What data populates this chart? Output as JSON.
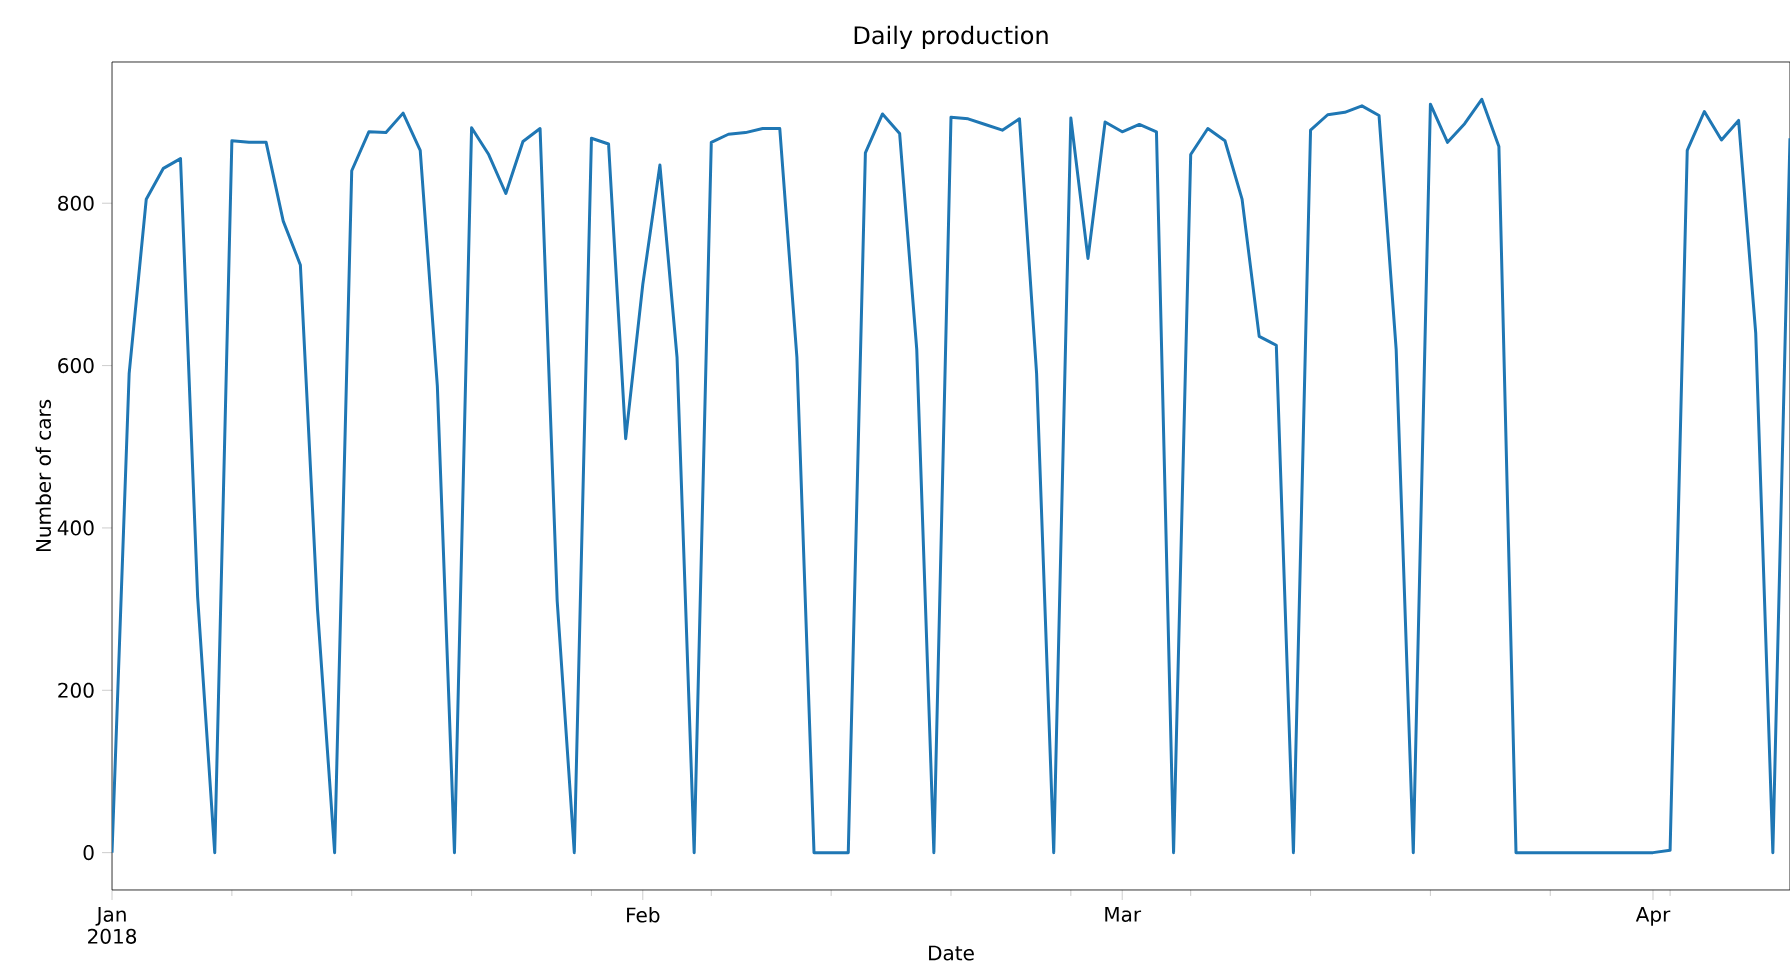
{
  "chart_data": {
    "type": "line",
    "title": "Daily production",
    "xlabel": "Date",
    "ylabel": "Number of cars",
    "x": [
      "2018-01-01",
      "2018-01-02",
      "2018-01-03",
      "2018-01-04",
      "2018-01-05",
      "2018-01-06",
      "2018-01-07",
      "2018-01-08",
      "2018-01-09",
      "2018-01-10",
      "2018-01-11",
      "2018-01-12",
      "2018-01-13",
      "2018-01-14",
      "2018-01-15",
      "2018-01-16",
      "2018-01-17",
      "2018-01-18",
      "2018-01-19",
      "2018-01-20",
      "2018-01-21",
      "2018-01-22",
      "2018-01-23",
      "2018-01-24",
      "2018-01-25",
      "2018-01-26",
      "2018-01-27",
      "2018-01-28",
      "2018-01-29",
      "2018-01-30",
      "2018-01-31",
      "2018-02-01",
      "2018-02-02",
      "2018-02-03",
      "2018-02-04",
      "2018-02-05",
      "2018-02-06",
      "2018-02-07",
      "2018-02-08",
      "2018-02-09",
      "2018-02-10",
      "2018-02-11",
      "2018-02-12",
      "2018-02-13",
      "2018-02-14",
      "2018-02-15",
      "2018-02-16",
      "2018-02-17",
      "2018-02-18",
      "2018-02-19",
      "2018-02-20",
      "2018-02-21",
      "2018-02-22",
      "2018-02-23",
      "2018-02-24",
      "2018-02-25",
      "2018-02-26",
      "2018-02-27",
      "2018-02-28",
      "2018-03-01",
      "2018-03-02",
      "2018-03-03",
      "2018-03-04",
      "2018-03-05",
      "2018-03-06",
      "2018-03-07",
      "2018-03-08",
      "2018-03-09",
      "2018-03-10",
      "2018-03-11",
      "2018-03-12",
      "2018-03-13",
      "2018-03-14",
      "2018-03-15",
      "2018-03-16",
      "2018-03-17",
      "2018-03-18",
      "2018-03-19",
      "2018-03-20",
      "2018-03-21",
      "2018-03-22",
      "2018-03-23",
      "2018-03-24",
      "2018-03-25",
      "2018-03-26",
      "2018-03-27",
      "2018-03-28",
      "2018-03-29",
      "2018-03-30",
      "2018-03-31",
      "2018-04-01",
      "2018-04-02",
      "2018-04-03",
      "2018-04-04",
      "2018-04-05",
      "2018-04-06",
      "2018-04-07",
      "2018-04-08",
      "2018-04-09"
    ],
    "series": [
      {
        "color": "#1f77b4",
        "values": [
          0,
          590,
          805,
          843,
          855,
          315,
          0,
          877,
          875,
          875,
          778,
          724,
          300,
          0,
          840,
          888,
          887,
          911,
          865,
          575,
          0,
          893,
          860,
          812,
          876,
          892,
          310,
          0,
          880,
          873,
          510,
          700,
          847,
          610,
          0,
          875,
          885,
          887,
          892,
          892,
          610,
          0,
          0,
          0,
          862,
          910,
          886,
          620,
          0,
          906,
          904,
          897,
          890,
          904,
          590,
          0,
          905,
          732,
          900,
          888,
          897,
          888,
          0,
          860,
          892,
          877,
          805,
          636,
          625,
          0,
          890,
          909,
          912,
          920,
          908,
          620,
          0,
          922,
          875,
          898,
          928,
          870,
          0,
          0,
          0,
          0,
          0,
          0,
          0,
          0,
          0,
          3,
          865,
          913,
          878,
          902,
          640,
          0,
          880
        ]
      }
    ],
    "xlim": [
      "2018-01-01",
      "2018-04-09"
    ],
    "xticks": [
      {
        "value": "2018-01-01",
        "label": "Jan\n2018"
      },
      {
        "value": "2018-01-08",
        "label": null
      },
      {
        "value": "2018-01-15",
        "label": null
      },
      {
        "value": "2018-01-22",
        "label": null
      },
      {
        "value": "2018-01-29",
        "label": null
      },
      {
        "value": "2018-02-01",
        "label": "Feb"
      },
      {
        "value": "2018-02-05",
        "label": null
      },
      {
        "value": "2018-02-12",
        "label": null
      },
      {
        "value": "2018-02-19",
        "label": null
      },
      {
        "value": "2018-02-26",
        "label": null
      },
      {
        "value": "2018-03-01",
        "label": "Mar"
      },
      {
        "value": "2018-03-05",
        "label": null
      },
      {
        "value": "2018-03-12",
        "label": null
      },
      {
        "value": "2018-03-19",
        "label": null
      },
      {
        "value": "2018-03-26",
        "label": null
      },
      {
        "value": "2018-04-01",
        "label": "Apr"
      },
      {
        "value": "2018-04-02",
        "label": null
      }
    ],
    "ylim": [
      -46,
      974
    ],
    "yticks": [
      0,
      200,
      400,
      600,
      800
    ],
    "grid": false,
    "marker": "none",
    "line_style": "solid"
  }
}
